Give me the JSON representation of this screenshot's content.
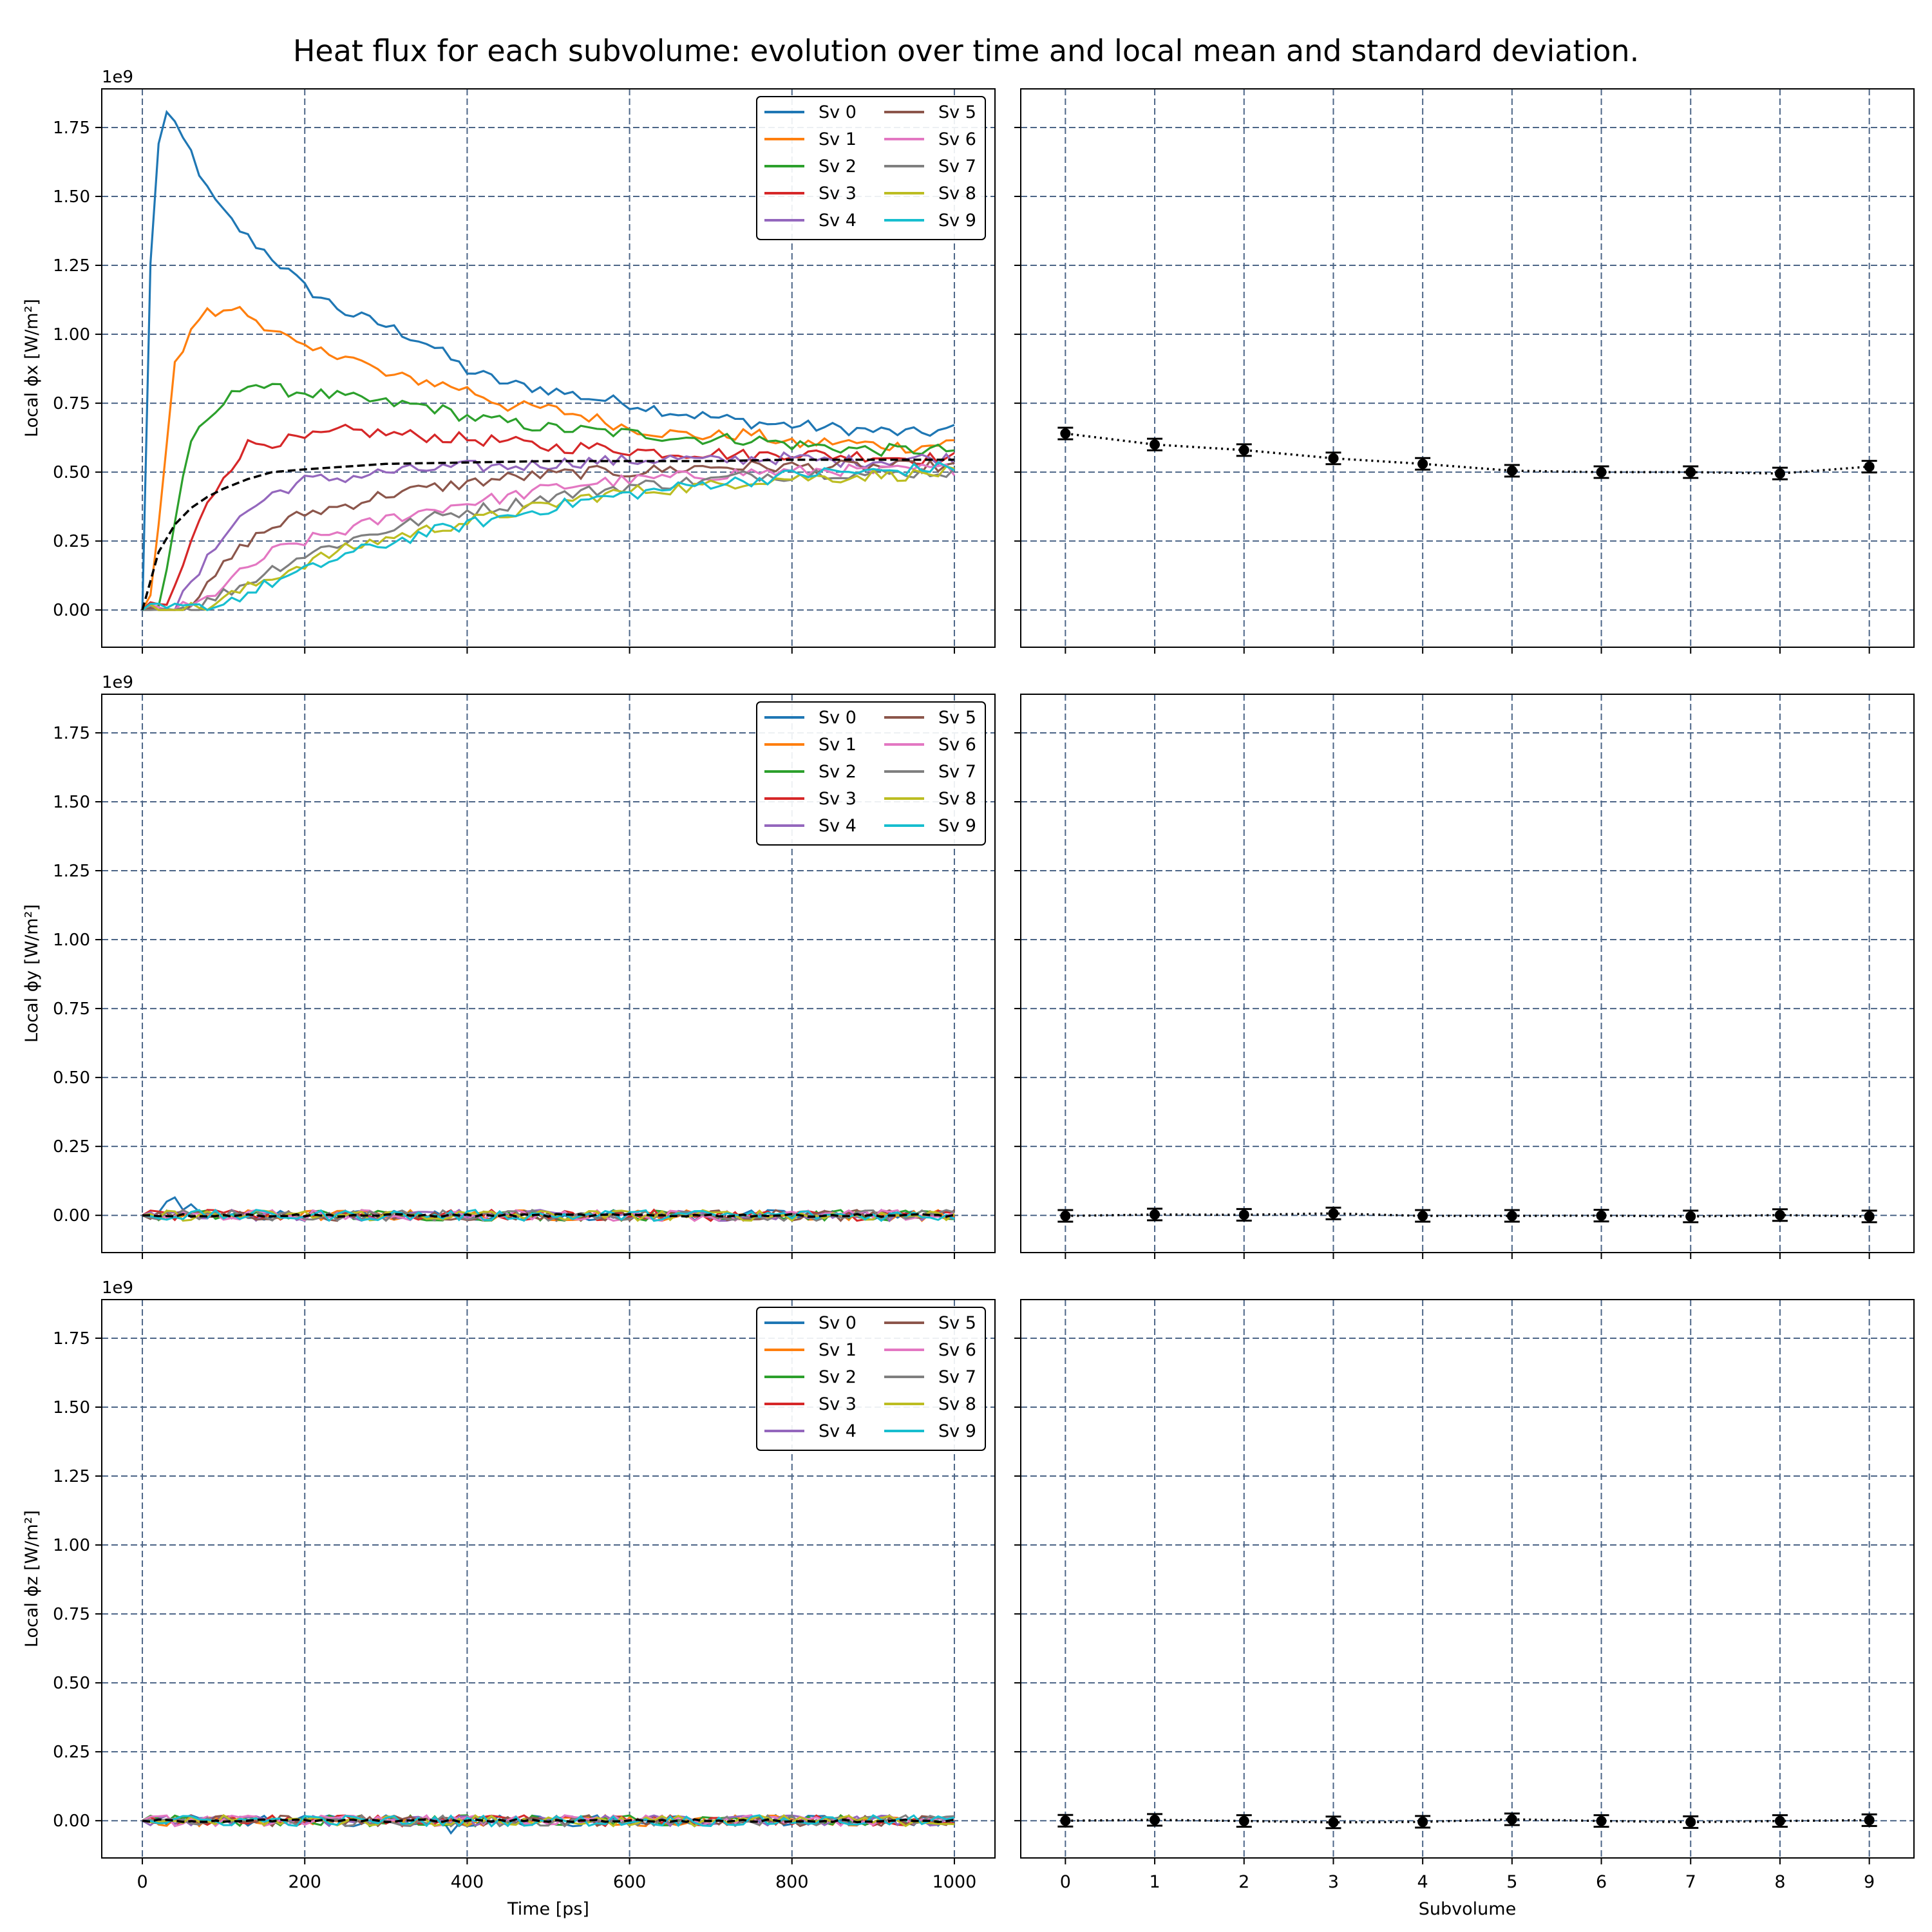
{
  "figure": {
    "title": "Heat flux for each subvolume: evolution over time and local mean and standard deviation."
  },
  "colors": {
    "series": [
      "#1f77b4",
      "#ff7f0e",
      "#2ca02c",
      "#d62728",
      "#9467bd",
      "#8c564b",
      "#e377c2",
      "#7f7f7f",
      "#bcbd22",
      "#17becf"
    ],
    "grid": "#4c6587",
    "mean_line": "#000000"
  },
  "chart_data": [
    {
      "type": "line",
      "ylabel": "Local ϕx [W/m²]",
      "xlabel": "",
      "ylim": [
        -0.135,
        1.89
      ],
      "xlim": [
        -50,
        1050
      ],
      "yoffset": "1e9",
      "yticks": [
        0,
        0.25,
        0.5,
        0.75,
        1.0,
        1.25,
        1.5,
        1.75
      ],
      "yticklabels": [
        "0.00",
        "0.25",
        "0.50",
        "0.75",
        "1.00",
        "1.25",
        "1.50",
        "1.75"
      ],
      "xticks": [
        0,
        200,
        400,
        600,
        800,
        1000
      ],
      "legend": {
        "placement": "top-right",
        "entries": [
          "Sv 0",
          "Sv 1",
          "Sv 2",
          "Sv 3",
          "Sv 4",
          "Sv 5",
          "Sv 6",
          "Sv 7",
          "Sv 8",
          "Sv 9"
        ]
      },
      "grid": true,
      "mean_curve": {
        "x": [
          0,
          20,
          40,
          60,
          80,
          100,
          130,
          160,
          200,
          250,
          300,
          400,
          500,
          600,
          700,
          800,
          900,
          1000
        ],
        "y": [
          0,
          0.21,
          0.31,
          0.37,
          0.41,
          0.44,
          0.475,
          0.5,
          0.51,
          0.52,
          0.53,
          0.535,
          0.54,
          0.54,
          0.54,
          0.545,
          0.545,
          0.545
        ]
      },
      "series": [
        {
          "name": "Sv 0",
          "x": [
            0,
            10,
            20,
            30,
            40,
            60,
            80,
            100,
            130,
            160,
            200,
            250,
            300,
            350,
            400,
            450,
            500,
            550,
            600,
            650,
            700,
            750,
            800,
            850,
            900,
            950,
            1000
          ],
          "values": [
            0,
            1.25,
            1.7,
            1.8,
            1.75,
            1.66,
            1.52,
            1.44,
            1.35,
            1.28,
            1.17,
            1.08,
            1.03,
            0.97,
            0.87,
            0.82,
            0.8,
            0.77,
            0.75,
            0.72,
            0.7,
            0.68,
            0.67,
            0.66,
            0.65,
            0.64,
            0.655
          ]
        },
        {
          "name": "Sv 1",
          "x": [
            0,
            10,
            20,
            30,
            40,
            60,
            80,
            100,
            110,
            130,
            160,
            200,
            250,
            300,
            350,
            400,
            450,
            500,
            550,
            600,
            650,
            700,
            750,
            800,
            850,
            900,
            950,
            1000
          ],
          "values": [
            0,
            0.05,
            0.3,
            0.62,
            0.88,
            1.03,
            1.08,
            1.07,
            1.1,
            1.07,
            1.02,
            0.94,
            0.93,
            0.85,
            0.83,
            0.8,
            0.74,
            0.73,
            0.7,
            0.66,
            0.64,
            0.63,
            0.64,
            0.6,
            0.61,
            0.6,
            0.59,
            0.61
          ]
        },
        {
          "name": "Sv 2",
          "x": [
            0,
            20,
            30,
            40,
            50,
            60,
            80,
            100,
            130,
            160,
            200,
            250,
            300,
            350,
            400,
            450,
            500,
            550,
            600,
            650,
            700,
            750,
            800,
            850,
            900,
            950,
            1000
          ],
          "values": [
            0,
            0.02,
            0.15,
            0.32,
            0.48,
            0.62,
            0.67,
            0.75,
            0.83,
            0.8,
            0.79,
            0.77,
            0.75,
            0.74,
            0.7,
            0.68,
            0.66,
            0.65,
            0.64,
            0.63,
            0.62,
            0.62,
            0.6,
            0.59,
            0.58,
            0.58,
            0.58
          ]
        },
        {
          "name": "Sv 3",
          "x": [
            0,
            30,
            40,
            50,
            60,
            80,
            100,
            130,
            160,
            200,
            250,
            300,
            350,
            400,
            450,
            500,
            550,
            600,
            650,
            700,
            750,
            800,
            850,
            900,
            950,
            1000
          ],
          "values": [
            0,
            0.02,
            0.08,
            0.16,
            0.25,
            0.38,
            0.49,
            0.6,
            0.61,
            0.62,
            0.65,
            0.64,
            0.63,
            0.62,
            0.61,
            0.59,
            0.59,
            0.58,
            0.57,
            0.57,
            0.56,
            0.57,
            0.56,
            0.56,
            0.55,
            0.55
          ]
        },
        {
          "name": "Sv 4",
          "x": [
            0,
            40,
            50,
            60,
            80,
            100,
            130,
            160,
            200,
            250,
            300,
            350,
            400,
            450,
            500,
            550,
            600,
            650,
            700,
            750,
            800,
            850,
            900,
            950,
            1000
          ],
          "values": [
            0,
            0.01,
            0.05,
            0.09,
            0.18,
            0.28,
            0.36,
            0.42,
            0.47,
            0.48,
            0.5,
            0.51,
            0.52,
            0.52,
            0.53,
            0.54,
            0.54,
            0.55,
            0.54,
            0.55,
            0.55,
            0.54,
            0.54,
            0.55,
            0.55
          ]
        },
        {
          "name": "Sv 5",
          "x": [
            0,
            50,
            60,
            80,
            100,
            130,
            160,
            200,
            250,
            300,
            350,
            400,
            450,
            500,
            550,
            600,
            650,
            700,
            750,
            800,
            850,
            900,
            950,
            1000
          ],
          "values": [
            0,
            0.01,
            0.03,
            0.08,
            0.16,
            0.25,
            0.3,
            0.35,
            0.38,
            0.42,
            0.44,
            0.46,
            0.48,
            0.49,
            0.5,
            0.5,
            0.51,
            0.52,
            0.52,
            0.52,
            0.52,
            0.52,
            0.52,
            0.52
          ]
        },
        {
          "name": "Sv 6",
          "x": [
            0,
            60,
            80,
            100,
            130,
            160,
            200,
            250,
            300,
            350,
            400,
            450,
            500,
            550,
            600,
            650,
            700,
            750,
            800,
            850,
            900,
            950,
            1000
          ],
          "values": [
            0,
            0.01,
            0.04,
            0.09,
            0.15,
            0.21,
            0.25,
            0.29,
            0.33,
            0.36,
            0.39,
            0.41,
            0.44,
            0.46,
            0.47,
            0.48,
            0.49,
            0.5,
            0.5,
            0.51,
            0.5,
            0.51,
            0.51
          ]
        },
        {
          "name": "Sv 7",
          "x": [
            0,
            70,
            80,
            100,
            130,
            160,
            200,
            250,
            300,
            350,
            400,
            450,
            500,
            550,
            600,
            650,
            700,
            750,
            800,
            850,
            900,
            950,
            1000
          ],
          "values": [
            0,
            0.01,
            0.03,
            0.06,
            0.1,
            0.15,
            0.2,
            0.25,
            0.29,
            0.33,
            0.36,
            0.38,
            0.41,
            0.43,
            0.45,
            0.46,
            0.47,
            0.49,
            0.49,
            0.5,
            0.49,
            0.5,
            0.5
          ]
        },
        {
          "name": "Sv 8",
          "x": [
            0,
            80,
            100,
            130,
            160,
            200,
            250,
            300,
            350,
            400,
            450,
            500,
            550,
            600,
            650,
            700,
            750,
            800,
            850,
            900,
            950,
            1000
          ],
          "values": [
            0,
            0.01,
            0.04,
            0.08,
            0.12,
            0.17,
            0.22,
            0.26,
            0.29,
            0.32,
            0.35,
            0.38,
            0.41,
            0.43,
            0.44,
            0.45,
            0.47,
            0.48,
            0.48,
            0.49,
            0.49,
            0.5
          ]
        },
        {
          "name": "Sv 9",
          "x": [
            0,
            90,
            100,
            130,
            160,
            200,
            250,
            300,
            350,
            400,
            450,
            500,
            550,
            600,
            650,
            700,
            750,
            800,
            850,
            900,
            950,
            1000
          ],
          "values": [
            0,
            0.01,
            0.03,
            0.06,
            0.1,
            0.14,
            0.2,
            0.24,
            0.28,
            0.31,
            0.34,
            0.37,
            0.4,
            0.42,
            0.44,
            0.46,
            0.47,
            0.49,
            0.5,
            0.5,
            0.51,
            0.52
          ]
        }
      ]
    },
    {
      "type": "scatter",
      "xlabel": "",
      "ylim": [
        -0.135,
        1.89
      ],
      "xlim": [
        -0.5,
        9.5
      ],
      "xticks": [
        0,
        1,
        2,
        3,
        4,
        5,
        6,
        7,
        8,
        9
      ],
      "grid": true,
      "x": [
        0,
        1,
        2,
        3,
        4,
        5,
        6,
        7,
        8,
        9
      ],
      "values": [
        0.64,
        0.6,
        0.58,
        0.55,
        0.53,
        0.505,
        0.5,
        0.5,
        0.495,
        0.52
      ],
      "error": [
        0.012,
        0.015,
        0.015,
        0.015,
        0.015,
        0.012,
        0.015,
        0.018,
        0.015,
        0.012
      ]
    },
    {
      "type": "line",
      "ylabel": "Local ϕy [W/m²]",
      "xlabel": "",
      "ylim": [
        -0.135,
        1.89
      ],
      "xlim": [
        -50,
        1050
      ],
      "yoffset": "1e9",
      "yticks": [
        0,
        0.25,
        0.5,
        0.75,
        1.0,
        1.25,
        1.5,
        1.75
      ],
      "yticklabels": [
        "0.00",
        "0.25",
        "0.50",
        "0.75",
        "1.00",
        "1.25",
        "1.50",
        "1.75"
      ],
      "xticks": [
        0,
        200,
        400,
        600,
        800,
        1000
      ],
      "legend": {
        "placement": "top-right",
        "entries": [
          "Sv 0",
          "Sv 1",
          "Sv 2",
          "Sv 3",
          "Sv 4",
          "Sv 5",
          "Sv 6",
          "Sv 7",
          "Sv 8",
          "Sv 9"
        ]
      },
      "grid": true,
      "noise_amplitude": 0.02,
      "spike": {
        "series": "Sv 0",
        "x": [
          20,
          30,
          40,
          50,
          60
        ],
        "values": [
          0.01,
          0.05,
          0.065,
          0.02,
          0.04
        ]
      }
    },
    {
      "type": "scatter",
      "xlabel": "",
      "ylim": [
        -0.135,
        1.89
      ],
      "xlim": [
        -0.5,
        9.5
      ],
      "xticks": [
        0,
        1,
        2,
        3,
        4,
        5,
        6,
        7,
        8,
        9
      ],
      "grid": true,
      "x": [
        0,
        1,
        2,
        3,
        4,
        5,
        6,
        7,
        8,
        9
      ],
      "values": [
        -0.002,
        0.003,
        0.002,
        0.007,
        -0.002,
        -0.002,
        -0.001,
        -0.004,
        0.001,
        -0.004
      ],
      "error": [
        0.012,
        0.012,
        0.012,
        0.012,
        0.012,
        0.012,
        0.012,
        0.014,
        0.012,
        0.012
      ]
    },
    {
      "type": "line",
      "ylabel": "Local ϕz [W/m²]",
      "xlabel": "Time [ps]",
      "ylim": [
        -0.135,
        1.89
      ],
      "xlim": [
        -50,
        1050
      ],
      "yoffset": "1e9",
      "yticks": [
        0,
        0.25,
        0.5,
        0.75,
        1.0,
        1.25,
        1.5,
        1.75
      ],
      "yticklabels": [
        "0.00",
        "0.25",
        "0.50",
        "0.75",
        "1.00",
        "1.25",
        "1.50",
        "1.75"
      ],
      "xticks": [
        0,
        200,
        400,
        600,
        800,
        1000
      ],
      "xticklabels": [
        "0",
        "200",
        "400",
        "600",
        "800",
        "1000"
      ],
      "legend": {
        "placement": "top-right",
        "entries": [
          "Sv 0",
          "Sv 1",
          "Sv 2",
          "Sv 3",
          "Sv 4",
          "Sv 5",
          "Sv 6",
          "Sv 7",
          "Sv 8",
          "Sv 9"
        ]
      },
      "grid": true,
      "noise_amplitude": 0.02,
      "spike": {
        "series": "Sv 0",
        "x": [
          370,
          380,
          390
        ],
        "values": [
          0.0,
          -0.045,
          -0.01
        ]
      }
    },
    {
      "type": "scatter",
      "xlabel": "Subvolume",
      "ylim": [
        -0.135,
        1.89
      ],
      "xlim": [
        -0.5,
        9.5
      ],
      "xticks": [
        0,
        1,
        2,
        3,
        4,
        5,
        6,
        7,
        8,
        9
      ],
      "xticklabels": [
        "0",
        "1",
        "2",
        "3",
        "4",
        "5",
        "6",
        "7",
        "8",
        "9"
      ],
      "grid": true,
      "x": [
        0,
        1,
        2,
        3,
        4,
        5,
        6,
        7,
        8,
        9
      ],
      "values": [
        0.0,
        0.003,
        -0.001,
        -0.006,
        -0.004,
        0.005,
        -0.001,
        -0.005,
        -0.001,
        0.002
      ],
      "error": [
        0.012,
        0.012,
        0.012,
        0.012,
        0.012,
        0.012,
        0.012,
        0.012,
        0.012,
        0.012
      ]
    }
  ]
}
